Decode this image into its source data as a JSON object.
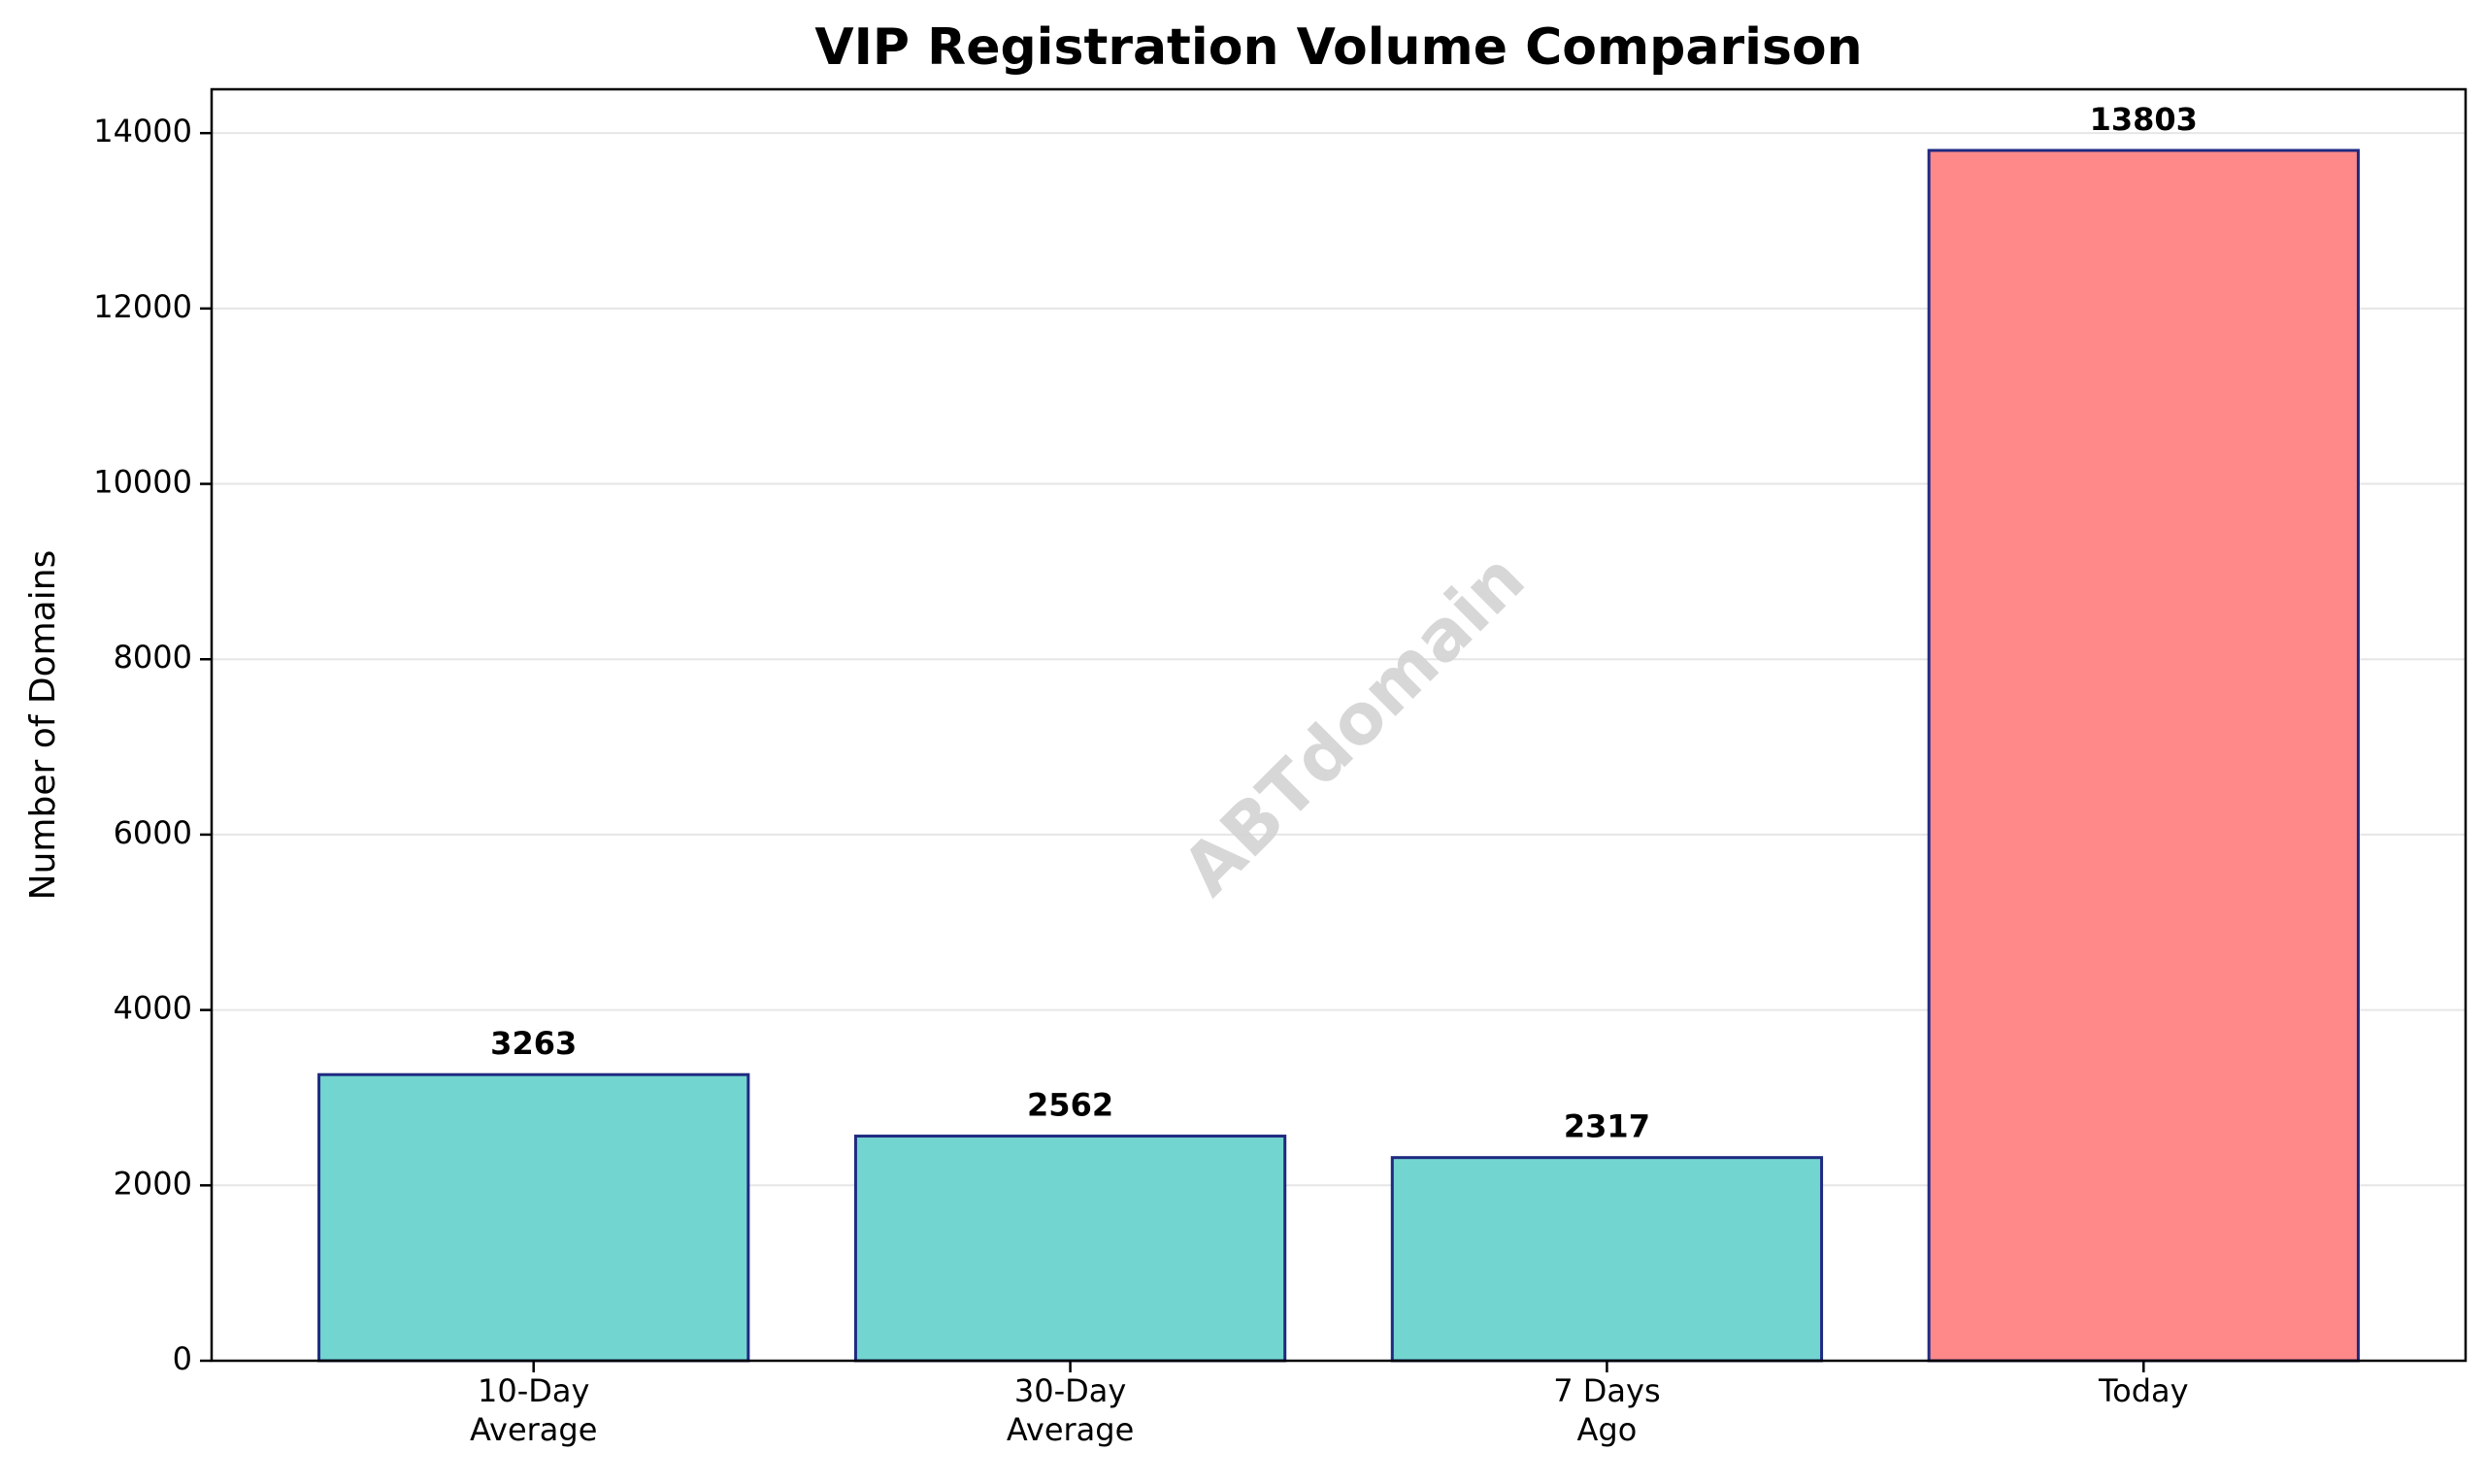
{
  "chart_data": {
    "type": "bar",
    "title": "VIP Registration Volume Comparison",
    "xlabel": "",
    "ylabel": "Number of Domains",
    "categories": [
      [
        "10-Day",
        "Average"
      ],
      [
        "30-Day",
        "Average"
      ],
      [
        "7 Days",
        "Ago"
      ],
      [
        "Today"
      ]
    ],
    "values": [
      3263,
      2562,
      2317,
      13803
    ],
    "value_labels": [
      "3263",
      "2562",
      "2317",
      "13803"
    ],
    "bar_colors": [
      "#73d5cf",
      "#73d5cf",
      "#73d5cf",
      "#ff8888"
    ],
    "bar_edge_color": "#1f2a80",
    "ylim": [
      0,
      14500
    ],
    "yticks": [
      0,
      2000,
      4000,
      6000,
      8000,
      10000,
      12000,
      14000
    ],
    "grid": "y",
    "legend": "none"
  },
  "watermark": {
    "text": "ABTdomain"
  },
  "colors": {
    "grid": "#e6e6e6",
    "axis": "#000000",
    "watermark": "#d3d3d3"
  }
}
